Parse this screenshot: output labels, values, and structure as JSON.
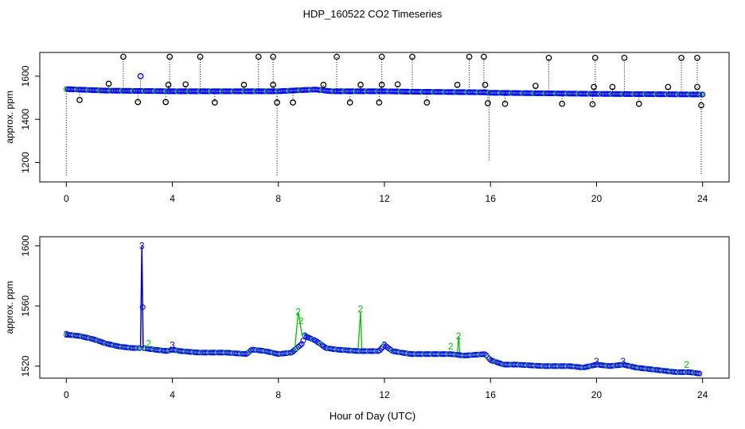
{
  "title": "HDP_160522  CO2 Timeseries",
  "xlabel": "Hour of Day (UTC)",
  "colors": {
    "flag0": "#000000",
    "flag1": "#0000ff",
    "flag2": "#00c000",
    "flag3": "#0000ff",
    "line2": "#00c000",
    "line3": "#0000cc"
  },
  "chart_data": [
    {
      "type": "scatter",
      "ylabel": "approx. ppm",
      "xlim": [
        -1,
        25
      ],
      "ylim": [
        1110,
        1710
      ],
      "xticks": [
        0,
        4,
        8,
        12,
        16,
        20,
        24
      ],
      "yticks": [
        1200,
        1400,
        1600
      ],
      "grid": false,
      "baseline": [
        [
          0,
          1540
        ],
        [
          1.5,
          1533
        ],
        [
          4,
          1530
        ],
        [
          8,
          1530
        ],
        [
          8.8,
          1535
        ],
        [
          9.4,
          1538
        ],
        [
          10,
          1530
        ],
        [
          12,
          1530
        ],
        [
          13,
          1528
        ],
        [
          15.8,
          1525
        ],
        [
          16,
          1523
        ],
        [
          20,
          1518
        ],
        [
          24,
          1515
        ]
      ],
      "outliers_high": [
        [
          1.6,
          1565
        ],
        [
          2.15,
          1690
        ],
        [
          2.8,
          1600
        ],
        [
          3.9,
          1690
        ],
        [
          3.85,
          1560
        ],
        [
          4.5,
          1562
        ],
        [
          5.05,
          1690
        ],
        [
          6.7,
          1560
        ],
        [
          7.25,
          1690
        ],
        [
          7.8,
          1690
        ],
        [
          7.8,
          1560
        ],
        [
          9.7,
          1560
        ],
        [
          10.2,
          1690
        ],
        [
          11.1,
          1560
        ],
        [
          11.9,
          1690
        ],
        [
          11.9,
          1560
        ],
        [
          12.5,
          1562
        ],
        [
          13.05,
          1690
        ],
        [
          14.75,
          1560
        ],
        [
          15.2,
          1690
        ],
        [
          15.75,
          1690
        ],
        [
          15.8,
          1560
        ],
        [
          17.7,
          1555
        ],
        [
          18.2,
          1685
        ],
        [
          19.95,
          1685
        ],
        [
          19.9,
          1550
        ],
        [
          20.6,
          1550
        ],
        [
          21.05,
          1685
        ],
        [
          22.7,
          1550
        ],
        [
          23.2,
          1685
        ],
        [
          23.8,
          1685
        ],
        [
          23.8,
          1550
        ]
      ],
      "outliers_low": [
        [
          0.5,
          1490
        ],
        [
          2.7,
          1480
        ],
        [
          3.75,
          1480
        ],
        [
          5.6,
          1478
        ],
        [
          7.95,
          1478
        ],
        [
          8.55,
          1478
        ],
        [
          10.7,
          1478
        ],
        [
          11.8,
          1478
        ],
        [
          13.6,
          1478
        ],
        [
          15.9,
          1475
        ],
        [
          16.55,
          1472
        ],
        [
          18.7,
          1472
        ],
        [
          19.85,
          1470
        ],
        [
          21.6,
          1472
        ],
        [
          23.95,
          1465
        ]
      ],
      "drops": [
        [
          0,
          1140
        ],
        [
          7.95,
          1140
        ],
        [
          15.95,
          1210
        ],
        [
          23.95,
          1140
        ]
      ]
    },
    {
      "type": "line",
      "ylabel": "approx. ppm",
      "xlim": [
        -1,
        25
      ],
      "ylim": [
        1512,
        1606
      ],
      "xticks": [
        0,
        4,
        8,
        12,
        16,
        20,
        24
      ],
      "yticks": [
        1520,
        1560,
        1600
      ],
      "grid": false,
      "series": [
        {
          "flag": "3",
          "points": [
            [
              0,
              1541
            ],
            [
              0.5,
              1540
            ],
            [
              1.0,
              1538
            ],
            [
              1.5,
              1535
            ],
            [
              2.0,
              1533
            ],
            [
              2.5,
              1532
            ],
            [
              2.8,
              1532
            ],
            [
              2.85,
              1600
            ],
            [
              2.9,
              1532
            ],
            [
              3.3,
              1531
            ],
            [
              3.8,
              1530
            ],
            [
              4.0,
              1531
            ],
            [
              4.3,
              1530
            ],
            [
              5.0,
              1529
            ],
            [
              6.0,
              1529
            ],
            [
              6.8,
              1528
            ],
            [
              7.0,
              1531
            ],
            [
              7.5,
              1530
            ],
            [
              8.0,
              1528
            ],
            [
              8.5,
              1529
            ],
            [
              8.9,
              1535
            ],
            [
              9.0,
              1540
            ],
            [
              9.4,
              1537
            ],
            [
              9.8,
              1532
            ],
            [
              10.2,
              1531
            ],
            [
              11.0,
              1530
            ],
            [
              11.8,
              1530
            ],
            [
              12.0,
              1534
            ],
            [
              12.3,
              1530
            ],
            [
              13.0,
              1528
            ],
            [
              14.0,
              1528
            ],
            [
              14.5,
              1528
            ],
            [
              15.0,
              1527
            ],
            [
              15.8,
              1528
            ],
            [
              16.0,
              1524
            ],
            [
              16.5,
              1521
            ],
            [
              17.0,
              1521
            ],
            [
              18.0,
              1520
            ],
            [
              19.0,
              1520
            ],
            [
              19.5,
              1519
            ],
            [
              20.0,
              1521
            ],
            [
              20.5,
              1520
            ],
            [
              21.0,
              1521
            ],
            [
              21.5,
              1519
            ],
            [
              22.0,
              1518
            ],
            [
              22.5,
              1517
            ],
            [
              23.0,
              1516
            ],
            [
              23.5,
              1516
            ],
            [
              23.9,
              1515
            ]
          ]
        },
        {
          "flag": "2",
          "points": [
            [
              8.6,
              1528
            ],
            [
              8.7,
              1545
            ],
            [
              8.75,
              1556
            ],
            [
              8.9,
              1540
            ],
            [
              9.2,
              1536
            ],
            [
              11.0,
              1530
            ],
            [
              11.1,
              1556
            ],
            [
              11.15,
              1530
            ],
            [
              14.5,
              1528
            ],
            [
              14.8,
              1540
            ],
            [
              14.85,
              1528
            ],
            [
              3.1,
              1532
            ],
            [
              4.2,
              1530
            ],
            [
              17.2,
              1520
            ],
            [
              19.4,
              1520
            ]
          ]
        }
      ],
      "labels": [
        {
          "text": "3",
          "x": 0,
          "y": 1541
        },
        {
          "text": "3",
          "x": 2.85,
          "y": 1600
        },
        {
          "text": "2",
          "x": 3.1,
          "y": 1535
        },
        {
          "text": "3",
          "x": 4.0,
          "y": 1534
        },
        {
          "text": "2",
          "x": 8.75,
          "y": 1556
        },
        {
          "text": "2",
          "x": 8.85,
          "y": 1550
        },
        {
          "text": "3",
          "x": 9.0,
          "y": 1540
        },
        {
          "text": "2",
          "x": 11.1,
          "y": 1558
        },
        {
          "text": "3",
          "x": 12.0,
          "y": 1534
        },
        {
          "text": "2",
          "x": 14.5,
          "y": 1533
        },
        {
          "text": "2",
          "x": 14.8,
          "y": 1540
        },
        {
          "text": "3",
          "x": 20.0,
          "y": 1523
        },
        {
          "text": "3",
          "x": 21.0,
          "y": 1523
        },
        {
          "text": "2",
          "x": 23.4,
          "y": 1521
        }
      ]
    }
  ]
}
